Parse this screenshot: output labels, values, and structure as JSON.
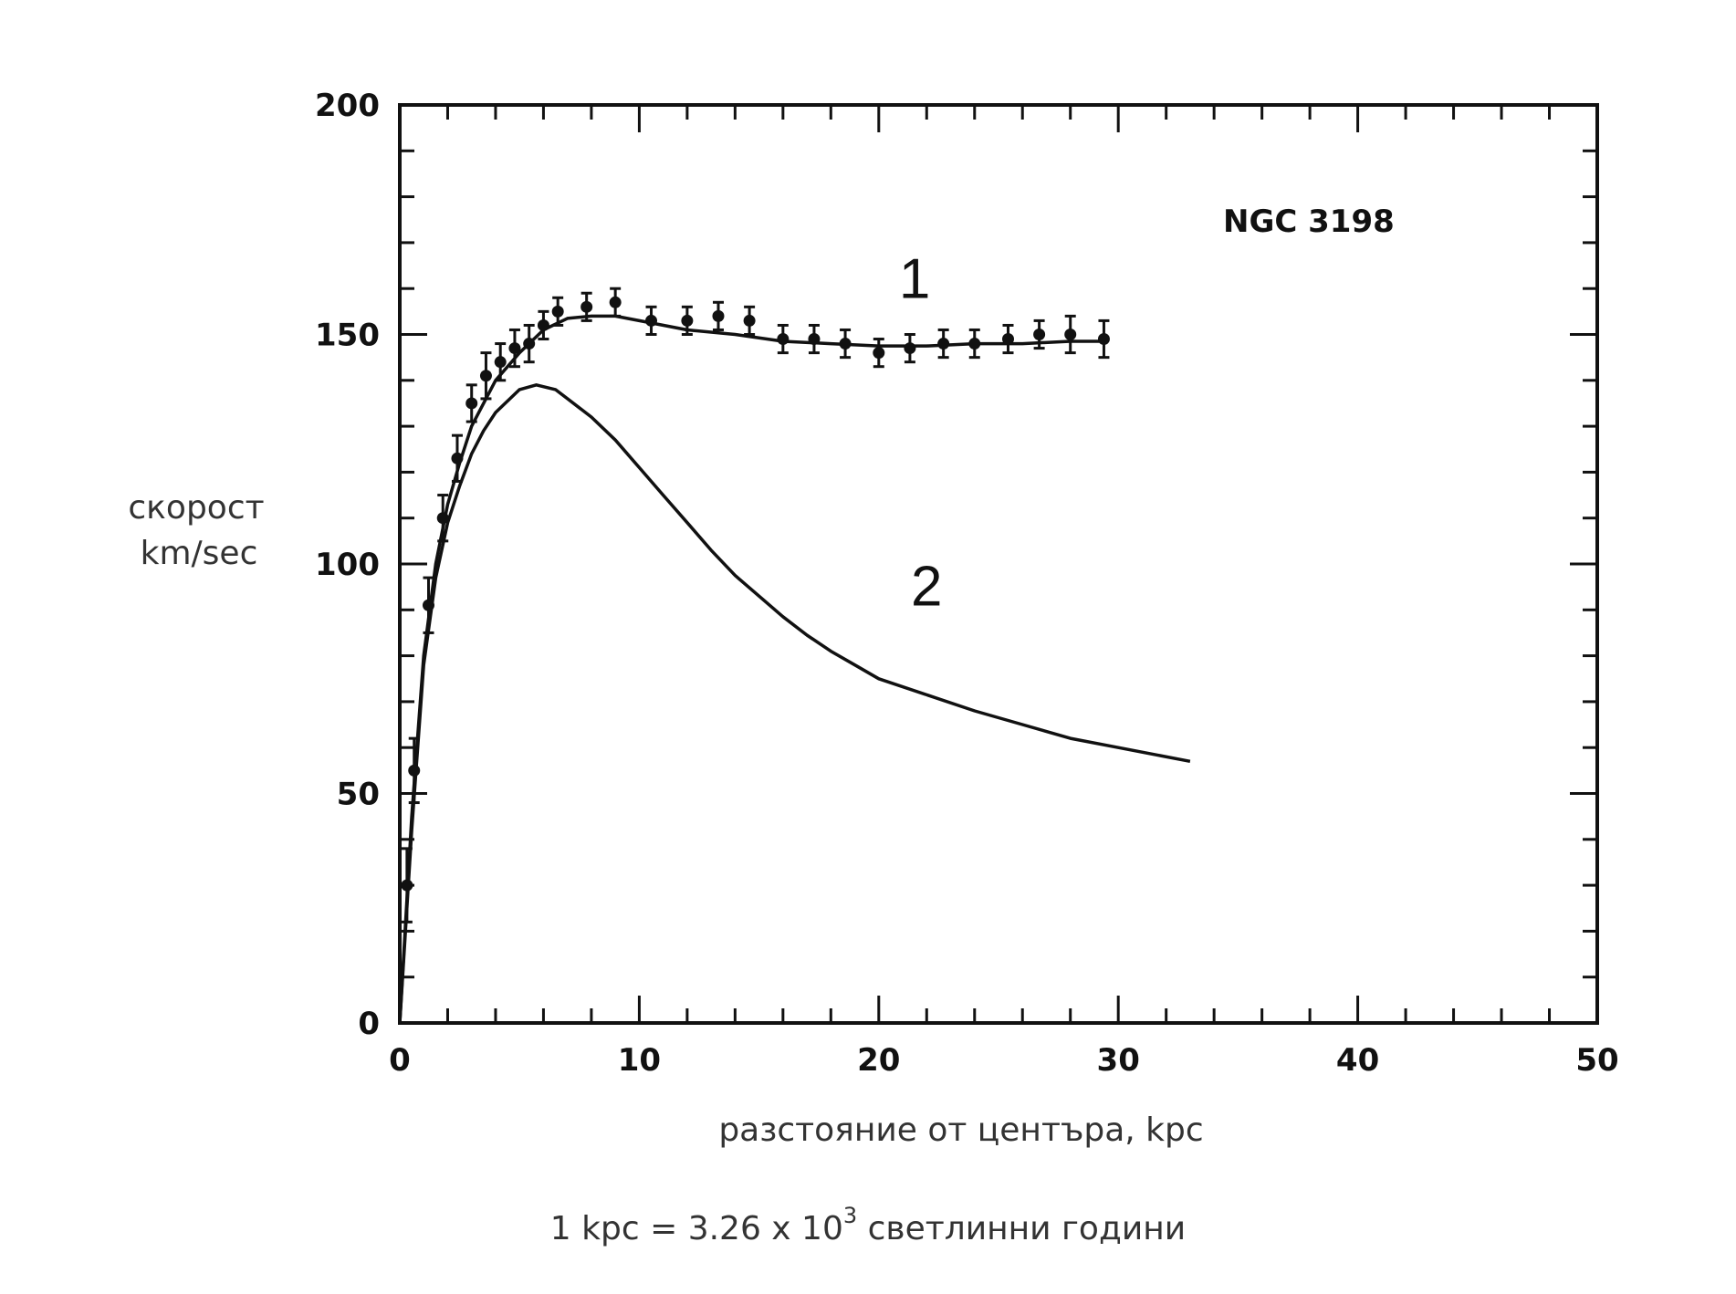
{
  "chart_data": {
    "type": "line",
    "title": "NGC 3198",
    "xlabel": "разстояние от центъра, kpc",
    "ylabel_line1": "скорост",
    "ylabel_line2": "km/sec",
    "xlim": [
      0,
      50
    ],
    "ylim": [
      0,
      200
    ],
    "x_ticks": [
      0,
      10,
      20,
      30,
      40,
      50
    ],
    "y_ticks": [
      0,
      50,
      100,
      150,
      200
    ],
    "grid": false,
    "annotations": [
      {
        "text": "1",
        "x": 21.5,
        "y": 158
      },
      {
        "text": "2",
        "x": 22,
        "y": 91
      }
    ],
    "observed_points": [
      {
        "x": 0.3,
        "y": 30,
        "err": 8
      },
      {
        "x": 0.6,
        "y": 55,
        "err": 7
      },
      {
        "x": 1.2,
        "y": 91,
        "err": 6
      },
      {
        "x": 1.8,
        "y": 110,
        "err": 5
      },
      {
        "x": 2.4,
        "y": 123,
        "err": 5
      },
      {
        "x": 3.0,
        "y": 135,
        "err": 4
      },
      {
        "x": 3.6,
        "y": 141,
        "err": 5
      },
      {
        "x": 4.2,
        "y": 144,
        "err": 4
      },
      {
        "x": 4.8,
        "y": 147,
        "err": 4
      },
      {
        "x": 5.4,
        "y": 148,
        "err": 4
      },
      {
        "x": 6.0,
        "y": 152,
        "err": 3
      },
      {
        "x": 6.6,
        "y": 155,
        "err": 3
      },
      {
        "x": 7.8,
        "y": 156,
        "err": 3
      },
      {
        "x": 9.0,
        "y": 157,
        "err": 3
      },
      {
        "x": 10.5,
        "y": 153,
        "err": 3
      },
      {
        "x": 12.0,
        "y": 153,
        "err": 3
      },
      {
        "x": 13.3,
        "y": 154,
        "err": 3
      },
      {
        "x": 14.6,
        "y": 153,
        "err": 3
      },
      {
        "x": 16.0,
        "y": 149,
        "err": 3
      },
      {
        "x": 17.3,
        "y": 149,
        "err": 3
      },
      {
        "x": 18.6,
        "y": 148,
        "err": 3
      },
      {
        "x": 20.0,
        "y": 146,
        "err": 3
      },
      {
        "x": 21.3,
        "y": 147,
        "err": 3
      },
      {
        "x": 22.7,
        "y": 148,
        "err": 3
      },
      {
        "x": 24.0,
        "y": 148,
        "err": 3
      },
      {
        "x": 25.4,
        "y": 149,
        "err": 3
      },
      {
        "x": 26.7,
        "y": 150,
        "err": 3
      },
      {
        "x": 28.0,
        "y": 150,
        "err": 4
      },
      {
        "x": 29.4,
        "y": 149,
        "err": 4
      }
    ],
    "series": [
      {
        "x": [
          0,
          0.5,
          1,
          1.5,
          2,
          2.5,
          3,
          4,
          5,
          6,
          7,
          8,
          9,
          10,
          12,
          14,
          16,
          18,
          20,
          22,
          24,
          26,
          28,
          29.5
        ],
        "y": [
          0,
          45,
          80,
          100,
          113,
          122,
          130,
          140,
          146,
          151,
          153.5,
          154,
          154,
          153,
          151,
          150,
          148.5,
          148,
          147.5,
          147.5,
          148,
          148,
          148.5,
          148.5
        ]
      },
      {
        "x": [
          0,
          0.5,
          1,
          1.5,
          2,
          2.5,
          3,
          3.5,
          4,
          5,
          5.7,
          6.5,
          7,
          8,
          9,
          10,
          11,
          12,
          13,
          14,
          15,
          16,
          17,
          18,
          19,
          20,
          22,
          24,
          26,
          28,
          30,
          33
        ],
        "y": [
          0,
          42,
          78,
          97,
          109,
          117,
          124,
          129,
          133,
          138,
          139,
          138,
          136,
          132,
          127,
          121,
          115,
          109,
          103,
          97.5,
          93,
          88.5,
          84.5,
          81,
          78,
          75,
          71.5,
          68,
          65,
          62,
          60,
          57
        ]
      }
    ]
  },
  "footnote": {
    "before_sup": "1 kpc = 3.26 x 10",
    "sup": "3",
    "after_sup": " светлинни години"
  }
}
